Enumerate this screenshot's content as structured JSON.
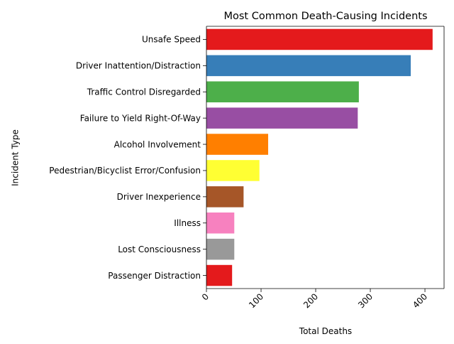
{
  "chart_data": {
    "type": "bar",
    "orientation": "horizontal",
    "title": "Most Common Death-Causing Incidents",
    "xlabel": "Total Deaths",
    "ylabel": "Incident Type",
    "xlim": [
      0,
      435
    ],
    "xticks": [
      0,
      100,
      200,
      300,
      400
    ],
    "grid": false,
    "categories": [
      "Unsafe Speed",
      "Driver Inattention/Distraction",
      "Traffic Control Disregarded",
      "Failure to Yield Right-Of-Way",
      "Alcohol Involvement",
      "Pedestrian/Bicyclist Error/Confusion",
      "Driver Inexperience",
      "Illness",
      "Lost Consciousness",
      "Passenger Distraction"
    ],
    "values": [
      414,
      374,
      279,
      277,
      113,
      97,
      68,
      51,
      51,
      47
    ],
    "colors": [
      "#e41a1c",
      "#377eb8",
      "#4daf4a",
      "#984ea3",
      "#ff7f00",
      "#ffff33",
      "#a65628",
      "#f781bf",
      "#999999",
      "#e41a1c"
    ]
  }
}
